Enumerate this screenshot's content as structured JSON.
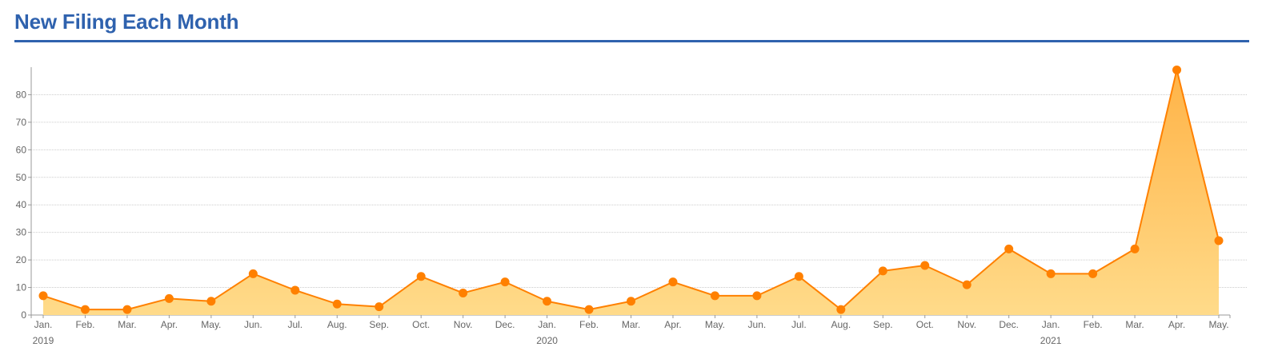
{
  "title": "New Filing Each Month",
  "colors": {
    "title": "#2f62ae",
    "line": "#ff8000",
    "area_low": "#ffdb8a",
    "area_high": "#ffb347",
    "grid": "#cccccc",
    "axis": "#999999"
  },
  "chart_data": {
    "type": "area",
    "title": "New Filing Each Month",
    "xlabel": "",
    "ylabel": "",
    "ylim": [
      0,
      90
    ],
    "yticks": [
      0,
      10,
      20,
      30,
      40,
      50,
      60,
      70,
      80
    ],
    "grid": true,
    "legend": "none",
    "categories": [
      "Jan.",
      "Feb.",
      "Mar.",
      "Apr.",
      "May.",
      "Jun.",
      "Jul.",
      "Aug.",
      "Sep.",
      "Oct.",
      "Nov.",
      "Dec.",
      "Jan.",
      "Feb.",
      "Mar.",
      "Apr.",
      "May.",
      "Jun.",
      "Jul.",
      "Aug.",
      "Sep.",
      "Oct.",
      "Nov.",
      "Dec.",
      "Jan.",
      "Feb.",
      "Mar.",
      "Apr.",
      "May."
    ],
    "year_labels": [
      {
        "label": "2019",
        "index": 0
      },
      {
        "label": "2020",
        "index": 12
      },
      {
        "label": "2021",
        "index": 24
      }
    ],
    "x": [
      "2019-01",
      "2019-02",
      "2019-03",
      "2019-04",
      "2019-05",
      "2019-06",
      "2019-07",
      "2019-08",
      "2019-09",
      "2019-10",
      "2019-11",
      "2019-12",
      "2020-01",
      "2020-02",
      "2020-03",
      "2020-04",
      "2020-05",
      "2020-06",
      "2020-07",
      "2020-08",
      "2020-09",
      "2020-10",
      "2020-11",
      "2020-12",
      "2021-01",
      "2021-02",
      "2021-03",
      "2021-04",
      "2021-05"
    ],
    "values": [
      7,
      2,
      2,
      6,
      5,
      15,
      9,
      4,
      3,
      14,
      8,
      12,
      5,
      2,
      5,
      12,
      7,
      7,
      14,
      2,
      16,
      18,
      11,
      24,
      15,
      15,
      24,
      89,
      27
    ]
  }
}
